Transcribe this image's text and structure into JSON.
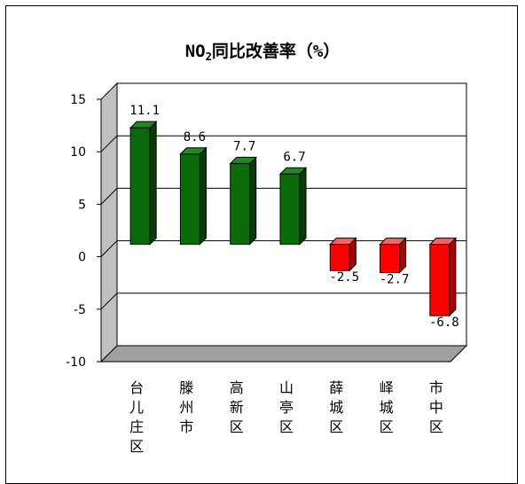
{
  "chart_data": {
    "type": "bar",
    "title_main": "NO",
    "title_sub": "2",
    "title_rest": "同比改善率（%）",
    "categories": [
      "台儿庄区",
      "滕州市",
      "高新区",
      "山亭区",
      "薛城区",
      "峄城区",
      "市中区"
    ],
    "values": [
      11.1,
      8.6,
      7.7,
      6.7,
      -2.5,
      -2.7,
      -6.8
    ],
    "value_labels": [
      "11.1",
      "8.6",
      "7.7",
      "6.7",
      "-2.5",
      "-2.7",
      "-6.8"
    ],
    "y_ticks": [
      "-10",
      "-5",
      "0",
      "5",
      "10",
      "15"
    ],
    "ylim": [
      -10,
      15
    ],
    "grid": true,
    "colors": {
      "positive": "#0b6b0b",
      "negative": "#ff0000",
      "wall": "#c0c0c0"
    }
  }
}
